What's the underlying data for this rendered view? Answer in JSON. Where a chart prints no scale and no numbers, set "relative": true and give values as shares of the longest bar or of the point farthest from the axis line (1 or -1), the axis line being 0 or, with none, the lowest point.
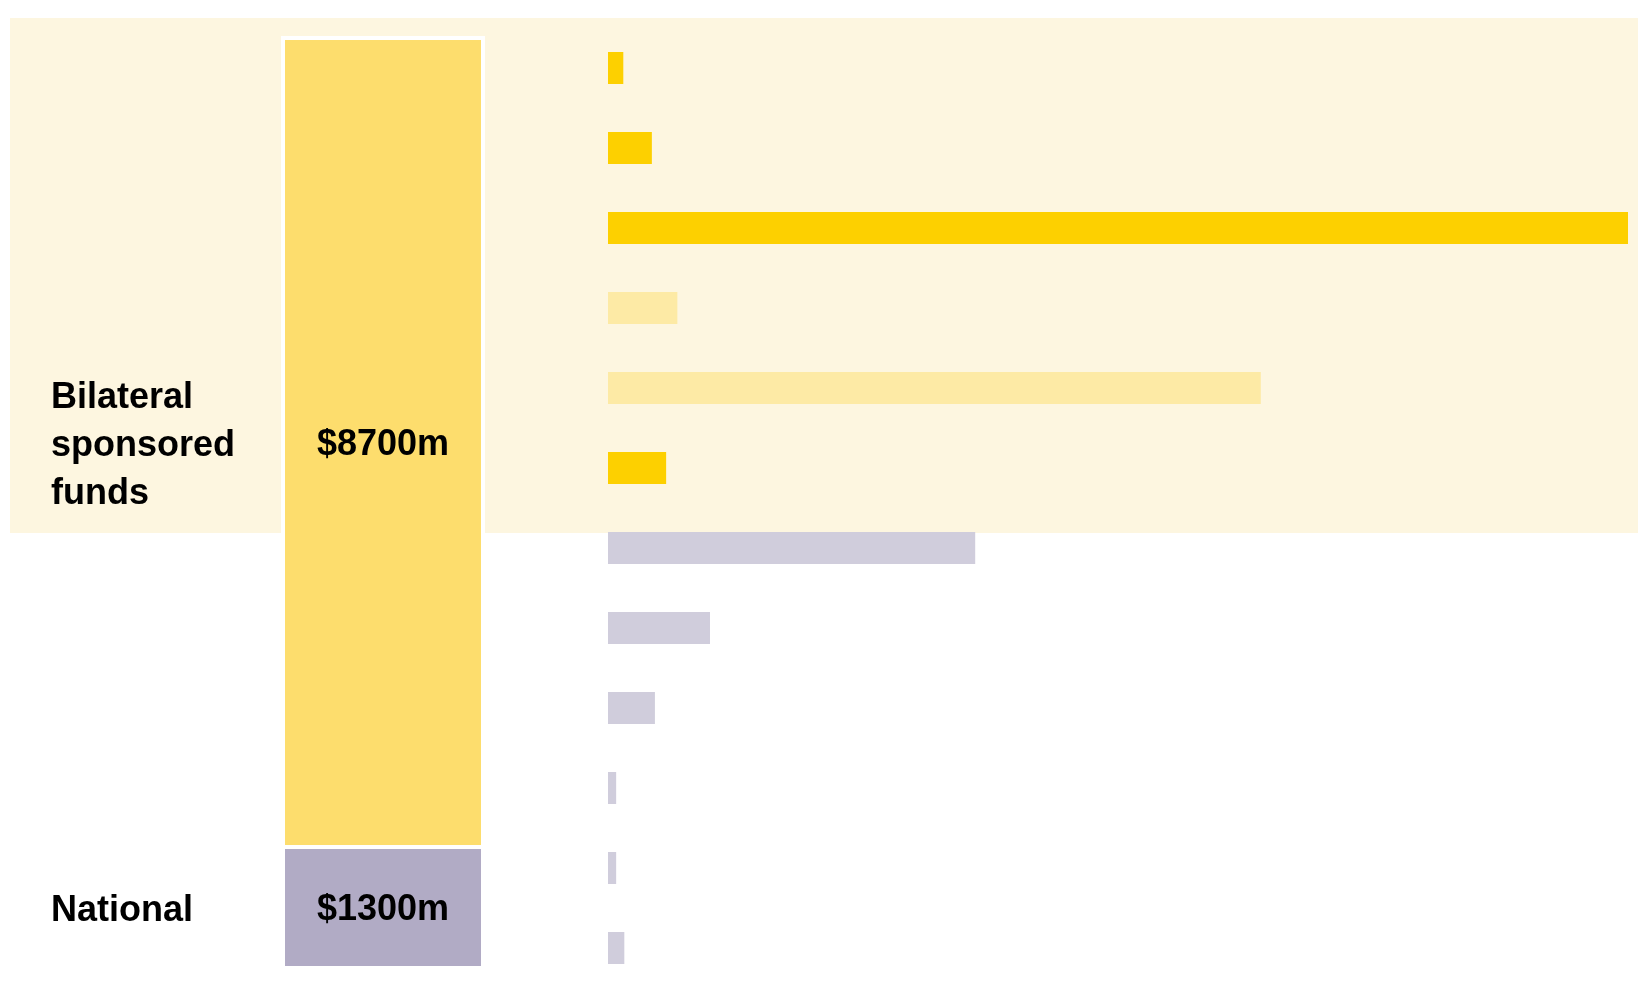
{
  "chart_data": [
    {
      "type": "bar",
      "stacked": true,
      "tick_labels": false,
      "categories": [
        null
      ],
      "series": [
        {
          "name": "National",
          "color": "#b1abc5",
          "values": [
            1300
          ],
          "value_labels": [
            "$1300m"
          ]
        },
        {
          "name": "Bilateral sponsored funds",
          "color": "#fddd6d",
          "values": [
            8700
          ],
          "value_labels": [
            "$8700m"
          ]
        }
      ]
    },
    {
      "type": "bar",
      "orientation": "horizontal",
      "relative": true,
      "categories": [
        null,
        null,
        null,
        null,
        null,
        null,
        null,
        null,
        null,
        null,
        null,
        null
      ],
      "values": [
        0.015,
        0.043,
        1,
        0.068,
        0.64,
        0.057,
        0.36,
        0.1,
        0.046,
        0.008,
        0.008,
        0.016
      ],
      "colors": [
        "#fdd000",
        "#fdd000",
        "#fdd000",
        "#fdeaa5",
        "#fdeaa5",
        "#fdd000",
        "#d0cddc",
        "#d0cddc",
        "#d0cddc",
        "#d0cddc",
        "#d0cddc",
        "#d0cddc"
      ]
    }
  ]
}
